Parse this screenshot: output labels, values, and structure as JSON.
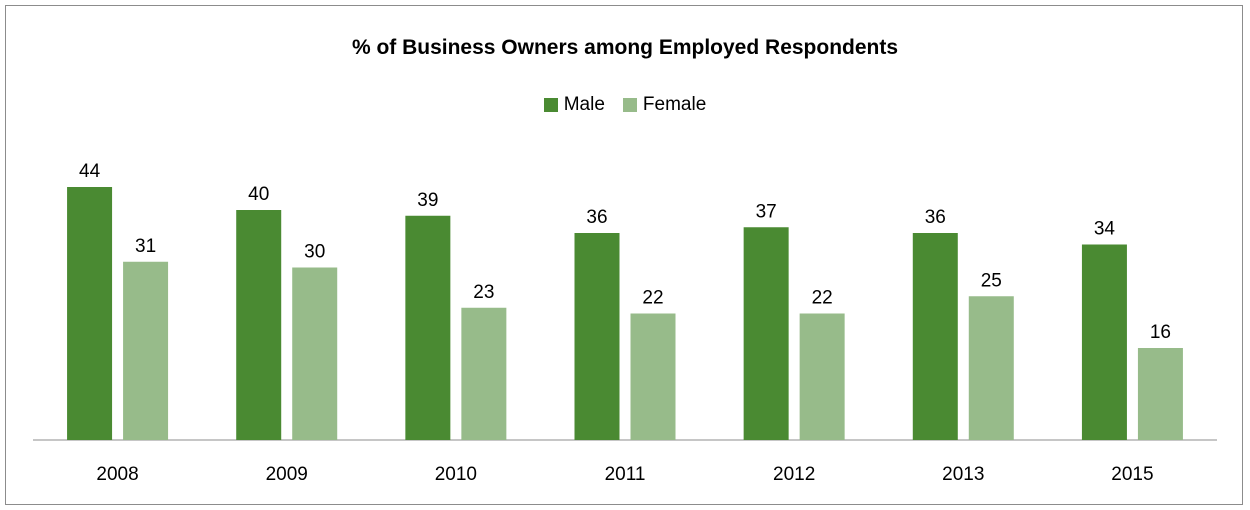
{
  "chart_data": {
    "type": "bar",
    "title": "% of Business Owners among Employed Respondents",
    "categories": [
      "2008",
      "2009",
      "2010",
      "2011",
      "2012",
      "2013",
      "2015"
    ],
    "series": [
      {
        "name": "Male",
        "color": "#4a8a32",
        "values": [
          44,
          40,
          39,
          36,
          37,
          36,
          34
        ]
      },
      {
        "name": "Female",
        "color": "#97bb8a",
        "values": [
          31,
          30,
          23,
          22,
          22,
          25,
          16
        ]
      }
    ],
    "xlabel": "",
    "ylabel": "",
    "ylim": [
      0,
      50
    ],
    "grid": false,
    "legend_position": "top"
  }
}
